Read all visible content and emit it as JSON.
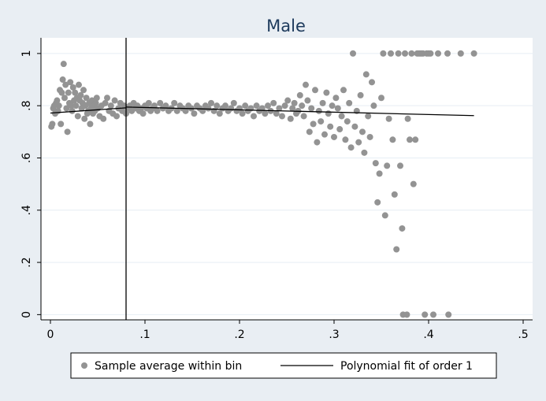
{
  "chart_data": {
    "type": "scatter",
    "title": "Male",
    "xlabel": "",
    "ylabel": "",
    "xlim": [
      -0.01,
      0.51
    ],
    "ylim": [
      -0.02,
      1.06
    ],
    "x_ticks": [
      0,
      0.1,
      0.2,
      0.3,
      0.4,
      0.5
    ],
    "x_tick_labels": [
      "0",
      ".1",
      ".2",
      ".3",
      ".4",
      ".5"
    ],
    "y_ticks": [
      0,
      0.2,
      0.4,
      0.6,
      0.8,
      1
    ],
    "y_tick_labels": [
      "0",
      ".2",
      ".4",
      ".6",
      ".8",
      "1"
    ],
    "grid": "horizontal",
    "cutoff_line_x": 0.08,
    "legend": {
      "position": "bottom",
      "entries": [
        "Sample average within bin",
        "Polynomial fit of order 1"
      ]
    },
    "colors": {
      "points": "#939393",
      "fit": "#000000",
      "plot_bg": "#ffffff",
      "outer_bg": "#e9eef3",
      "grid": "#e6eef4",
      "title": "#1d3a5c"
    },
    "series": [
      {
        "name": "Sample average within bin",
        "kind": "scatter",
        "points": [
          [
            0.001,
            0.72
          ],
          [
            0.002,
            0.73
          ],
          [
            0.003,
            0.79
          ],
          [
            0.004,
            0.8
          ],
          [
            0.005,
            0.77
          ],
          [
            0.006,
            0.81
          ],
          [
            0.007,
            0.82
          ],
          [
            0.008,
            0.78
          ],
          [
            0.009,
            0.8
          ],
          [
            0.01,
            0.86
          ],
          [
            0.011,
            0.73
          ],
          [
            0.012,
            0.85
          ],
          [
            0.013,
            0.9
          ],
          [
            0.014,
            0.96
          ],
          [
            0.015,
            0.83
          ],
          [
            0.016,
            0.88
          ],
          [
            0.017,
            0.79
          ],
          [
            0.018,
            0.7
          ],
          [
            0.019,
            0.85
          ],
          [
            0.02,
            0.81
          ],
          [
            0.021,
            0.89
          ],
          [
            0.022,
            0.8
          ],
          [
            0.023,
            0.78
          ],
          [
            0.024,
            0.87
          ],
          [
            0.025,
            0.82
          ],
          [
            0.026,
            0.85
          ],
          [
            0.027,
            0.8
          ],
          [
            0.028,
            0.83
          ],
          [
            0.029,
            0.76
          ],
          [
            0.03,
            0.88
          ],
          [
            0.031,
            0.82
          ],
          [
            0.032,
            0.84
          ],
          [
            0.033,
            0.79
          ],
          [
            0.034,
            0.81
          ],
          [
            0.035,
            0.86
          ],
          [
            0.036,
            0.75
          ],
          [
            0.037,
            0.8
          ],
          [
            0.038,
            0.83
          ],
          [
            0.039,
            0.77
          ],
          [
            0.04,
            0.78
          ],
          [
            0.041,
            0.81
          ],
          [
            0.042,
            0.73
          ],
          [
            0.043,
            0.79
          ],
          [
            0.044,
            0.82
          ],
          [
            0.045,
            0.77
          ],
          [
            0.046,
            0.8
          ],
          [
            0.047,
            0.78
          ],
          [
            0.048,
            0.81
          ],
          [
            0.049,
            0.83
          ],
          [
            0.05,
            0.79
          ],
          [
            0.052,
            0.76
          ],
          [
            0.054,
            0.8
          ],
          [
            0.056,
            0.75
          ],
          [
            0.058,
            0.81
          ],
          [
            0.06,
            0.83
          ],
          [
            0.062,
            0.78
          ],
          [
            0.064,
            0.8
          ],
          [
            0.066,
            0.77
          ],
          [
            0.068,
            0.82
          ],
          [
            0.07,
            0.76
          ],
          [
            0.072,
            0.79
          ],
          [
            0.074,
            0.81
          ],
          [
            0.076,
            0.78
          ],
          [
            0.078,
            0.8
          ],
          [
            0.08,
            0.77
          ],
          [
            0.082,
            0.79
          ],
          [
            0.084,
            0.8
          ],
          [
            0.086,
            0.78
          ],
          [
            0.088,
            0.81
          ],
          [
            0.09,
            0.79
          ],
          [
            0.092,
            0.8
          ],
          [
            0.094,
            0.78
          ],
          [
            0.096,
            0.79
          ],
          [
            0.098,
            0.77
          ],
          [
            0.1,
            0.8
          ],
          [
            0.102,
            0.79
          ],
          [
            0.104,
            0.81
          ],
          [
            0.106,
            0.78
          ],
          [
            0.108,
            0.79
          ],
          [
            0.11,
            0.8
          ],
          [
            0.113,
            0.78
          ],
          [
            0.116,
            0.81
          ],
          [
            0.119,
            0.79
          ],
          [
            0.122,
            0.8
          ],
          [
            0.125,
            0.78
          ],
          [
            0.128,
            0.79
          ],
          [
            0.131,
            0.81
          ],
          [
            0.134,
            0.78
          ],
          [
            0.137,
            0.8
          ],
          [
            0.14,
            0.79
          ],
          [
            0.143,
            0.78
          ],
          [
            0.146,
            0.8
          ],
          [
            0.149,
            0.79
          ],
          [
            0.152,
            0.77
          ],
          [
            0.155,
            0.8
          ],
          [
            0.158,
            0.79
          ],
          [
            0.161,
            0.78
          ],
          [
            0.164,
            0.8
          ],
          [
            0.167,
            0.79
          ],
          [
            0.17,
            0.81
          ],
          [
            0.173,
            0.78
          ],
          [
            0.176,
            0.8
          ],
          [
            0.179,
            0.77
          ],
          [
            0.182,
            0.79
          ],
          [
            0.185,
            0.8
          ],
          [
            0.188,
            0.78
          ],
          [
            0.191,
            0.79
          ],
          [
            0.194,
            0.81
          ],
          [
            0.197,
            0.78
          ],
          [
            0.2,
            0.79
          ],
          [
            0.203,
            0.77
          ],
          [
            0.206,
            0.8
          ],
          [
            0.209,
            0.78
          ],
          [
            0.212,
            0.79
          ],
          [
            0.215,
            0.76
          ],
          [
            0.218,
            0.8
          ],
          [
            0.221,
            0.78
          ],
          [
            0.224,
            0.79
          ],
          [
            0.227,
            0.77
          ],
          [
            0.23,
            0.8
          ],
          [
            0.233,
            0.78
          ],
          [
            0.236,
            0.81
          ],
          [
            0.239,
            0.77
          ],
          [
            0.242,
            0.79
          ],
          [
            0.245,
            0.76
          ],
          [
            0.248,
            0.8
          ],
          [
            0.251,
            0.82
          ],
          [
            0.254,
            0.75
          ],
          [
            0.256,
            0.79
          ],
          [
            0.258,
            0.81
          ],
          [
            0.26,
            0.77
          ],
          [
            0.262,
            0.78
          ],
          [
            0.264,
            0.84
          ],
          [
            0.266,
            0.8
          ],
          [
            0.268,
            0.76
          ],
          [
            0.27,
            0.88
          ],
          [
            0.272,
            0.82
          ],
          [
            0.274,
            0.7
          ],
          [
            0.276,
            0.79
          ],
          [
            0.278,
            0.73
          ],
          [
            0.28,
            0.86
          ],
          [
            0.282,
            0.66
          ],
          [
            0.284,
            0.78
          ],
          [
            0.286,
            0.74
          ],
          [
            0.288,
            0.81
          ],
          [
            0.29,
            0.69
          ],
          [
            0.292,
            0.85
          ],
          [
            0.294,
            0.77
          ],
          [
            0.296,
            0.72
          ],
          [
            0.298,
            0.8
          ],
          [
            0.3,
            0.68
          ],
          [
            0.302,
            0.83
          ],
          [
            0.304,
            0.79
          ],
          [
            0.306,
            0.71
          ],
          [
            0.308,
            0.76
          ],
          [
            0.31,
            0.86
          ],
          [
            0.312,
            0.67
          ],
          [
            0.314,
            0.74
          ],
          [
            0.316,
            0.81
          ],
          [
            0.318,
            0.64
          ],
          [
            0.32,
            1.0
          ],
          [
            0.322,
            0.72
          ],
          [
            0.324,
            0.78
          ],
          [
            0.326,
            0.66
          ],
          [
            0.328,
            0.84
          ],
          [
            0.33,
            0.7
          ],
          [
            0.332,
            0.62
          ],
          [
            0.334,
            0.92
          ],
          [
            0.336,
            0.76
          ],
          [
            0.338,
            0.68
          ],
          [
            0.34,
            0.89
          ],
          [
            0.342,
            0.8
          ],
          [
            0.344,
            0.58
          ],
          [
            0.346,
            0.43
          ],
          [
            0.348,
            0.54
          ],
          [
            0.35,
            0.83
          ],
          [
            0.352,
            1.0
          ],
          [
            0.354,
            0.38
          ],
          [
            0.356,
            0.57
          ],
          [
            0.358,
            0.75
          ],
          [
            0.36,
            1.0
          ],
          [
            0.362,
            0.67
          ],
          [
            0.364,
            0.46
          ],
          [
            0.366,
            0.25
          ],
          [
            0.368,
            1.0
          ],
          [
            0.37,
            0.57
          ],
          [
            0.372,
            0.33
          ],
          [
            0.373,
            0.0
          ],
          [
            0.375,
            1.0
          ],
          [
            0.377,
            0.0
          ],
          [
            0.378,
            0.75
          ],
          [
            0.38,
            0.67
          ],
          [
            0.382,
            1.0
          ],
          [
            0.384,
            0.5
          ],
          [
            0.386,
            0.67
          ],
          [
            0.388,
            1.0
          ],
          [
            0.39,
            1.0
          ],
          [
            0.392,
            1.0
          ],
          [
            0.394,
            1.0
          ],
          [
            0.396,
            0.0
          ],
          [
            0.398,
            1.0
          ],
          [
            0.4,
            1.0
          ],
          [
            0.402,
            1.0
          ],
          [
            0.405,
            0.0
          ],
          [
            0.41,
            1.0
          ],
          [
            0.42,
            1.0
          ],
          [
            0.421,
            0.0
          ],
          [
            0.434,
            1.0
          ],
          [
            0.448,
            1.0
          ]
        ]
      },
      {
        "name": "Polynomial fit of order 1",
        "kind": "line",
        "segments": [
          [
            [
              0.0,
              0.772
            ],
            [
              0.08,
              0.792
            ]
          ],
          [
            [
              0.08,
              0.795
            ],
            [
              0.448,
              0.762
            ]
          ]
        ]
      }
    ]
  }
}
